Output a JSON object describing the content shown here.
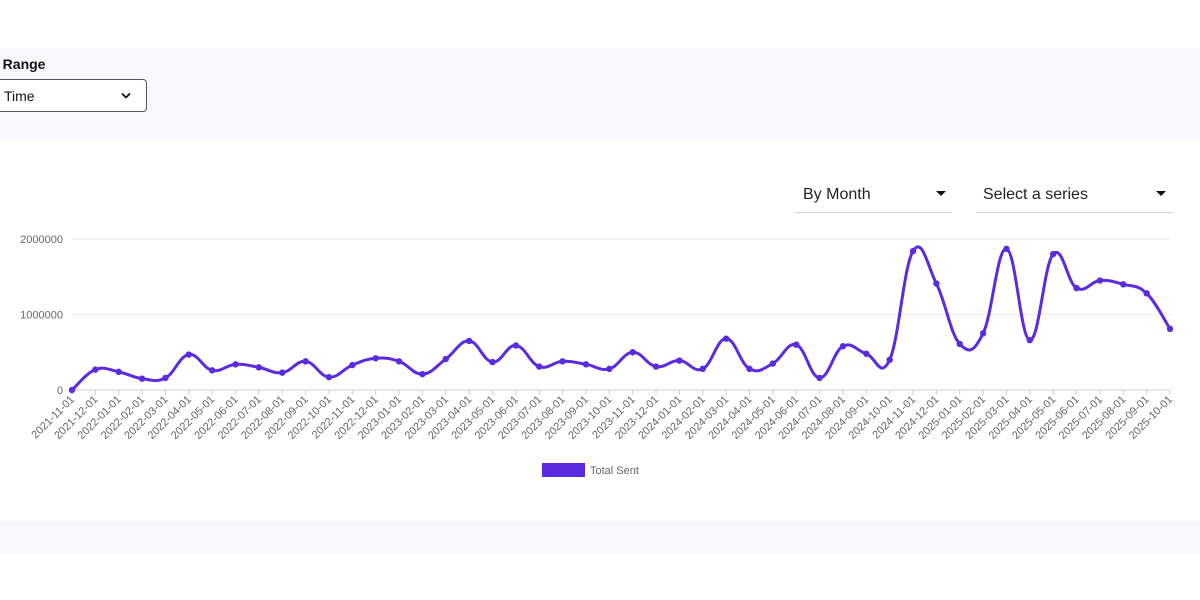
{
  "filters": {
    "date_range_label": "e Range",
    "date_range_value": "Time"
  },
  "controls": {
    "grouping_value": "By Month",
    "series_placeholder": "Select a series"
  },
  "colors": {
    "series": "#5b2be0",
    "grid": "#e9e9ee",
    "axis_text": "#666666"
  },
  "chart_data": {
    "type": "line",
    "ylim": [
      0,
      2000000
    ],
    "yticks": [
      "0",
      "1000000",
      "2000000"
    ],
    "grid": true,
    "legend_position": "bottom",
    "x": [
      "2021-11-01",
      "2021-12-01",
      "2022-01-01",
      "2022-02-01",
      "2022-03-01",
      "2022-04-01",
      "2022-05-01",
      "2022-06-01",
      "2022-07-01",
      "2022-08-01",
      "2022-09-01",
      "2022-10-01",
      "2022-11-01",
      "2022-12-01",
      "2023-01-01",
      "2023-02-01",
      "2023-03-01",
      "2023-04-01",
      "2023-05-01",
      "2023-06-01",
      "2023-07-01",
      "2023-08-01",
      "2023-09-01",
      "2023-10-01",
      "2023-11-01",
      "2023-12-01",
      "2024-01-01",
      "2024-02-01",
      "2024-03-01",
      "2024-04-01",
      "2024-05-01",
      "2024-06-01",
      "2024-07-01",
      "2024-08-01",
      "2024-09-01",
      "2024-10-01",
      "2024-11-01",
      "2024-12-01",
      "2025-01-01",
      "2025-02-01",
      "2025-03-01",
      "2025-04-01",
      "2025-05-01",
      "2025-06-01",
      "2025-07-01",
      "2025-08-01",
      "2025-09-01",
      "2025-10-01"
    ],
    "series": [
      {
        "name": "Total Sent",
        "values": [
          0,
          270000,
          240000,
          150000,
          160000,
          470000,
          260000,
          340000,
          300000,
          230000,
          380000,
          170000,
          330000,
          420000,
          380000,
          210000,
          410000,
          650000,
          370000,
          590000,
          310000,
          380000,
          340000,
          280000,
          500000,
          310000,
          390000,
          280000,
          680000,
          280000,
          350000,
          600000,
          160000,
          580000,
          480000,
          400000,
          1840000,
          1410000,
          610000,
          750000,
          1870000,
          660000,
          1800000,
          1350000,
          1450000,
          1400000,
          1280000,
          810000
        ]
      }
    ]
  }
}
